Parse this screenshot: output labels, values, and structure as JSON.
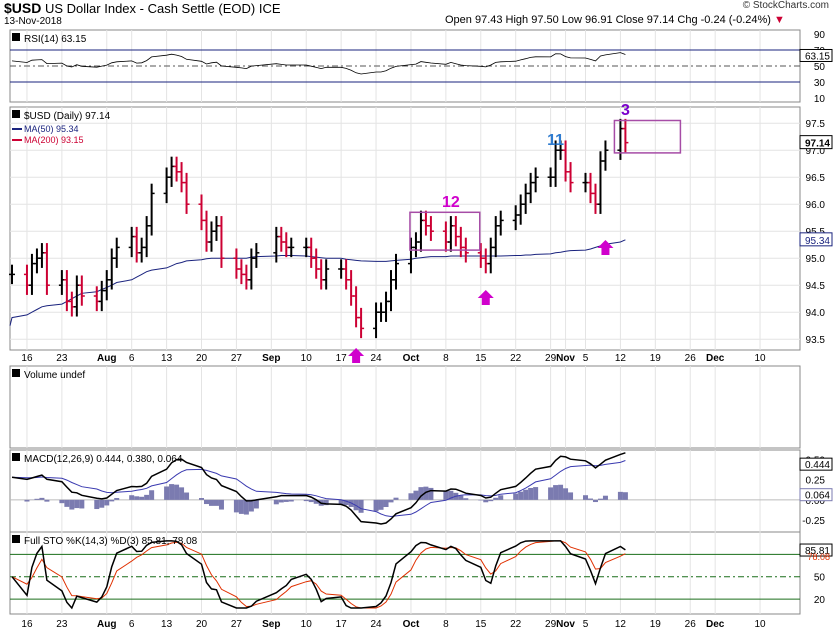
{
  "header": {
    "symbol": "$USD",
    "name": "US Dollar Index - Cash Settle (EOD)",
    "exchange": "ICE",
    "date": "13-Nov-2018",
    "ohlc_text": "Open 97.43  High 97.50  Low 96.91  Close 97.14  Chg -0.24 (-0.24%)",
    "ohlc_chg_arrow": "▼",
    "logo": "© StockCharts.com"
  },
  "colors": {
    "up": "#000000",
    "down": "#cc0033",
    "ma50": "#1a237e",
    "ma200": "#cc0033",
    "annotation_magenta": "#d000cc",
    "annotation_blue": "#2e7bcf",
    "annotation_purple": "#7a00cc",
    "box": "#a64ca6",
    "volume_bars": "#7b7bb0"
  },
  "x_axis": {
    "labels": [
      "16",
      "23",
      "Aug",
      "6",
      "13",
      "20",
      "27",
      "Sep",
      "10",
      "17",
      "24",
      "Oct",
      "8",
      "15",
      "22",
      "29",
      "Nov",
      "5",
      "12",
      "19",
      "26",
      "Dec",
      "10"
    ]
  },
  "rsi": {
    "label": "RSI(14) 63.15",
    "levels": [
      "90",
      "70",
      "63.15",
      "50",
      "30",
      "10"
    ]
  },
  "price_panel": {
    "legend_main": "$USD (Daily) 97.14",
    "legend_ma50": "MA(50) 95.34",
    "legend_ma200": "MA(200) 93.15",
    "y_labels": [
      "97.5",
      "97.0",
      "96.5",
      "96.0",
      "95.5",
      "95.0",
      "94.5",
      "94.0",
      "93.5"
    ],
    "last_price_tag": "97.14",
    "ma50_tag": "95.34",
    "annotations": [
      "12",
      "11",
      "3"
    ]
  },
  "volume": {
    "label": "Volume undef"
  },
  "macd": {
    "label": "MACD(12,26,9) 0.444, 0.380, 0.064",
    "y_labels": [
      "0.50",
      "0.444",
      "0.25",
      "0.064",
      "0.00",
      "-0.25"
    ]
  },
  "sto": {
    "label": "Full STO %K(14,3) %D(3) 85.81, 78.08",
    "y_labels": [
      "85.81",
      "78.08",
      "50",
      "20"
    ]
  },
  "chart_data": {
    "type": "candlestick",
    "title": "$USD US Dollar Index - Cash Settle (EOD) ICE",
    "x": [
      "2018-07-13",
      "2018-07-16",
      "2018-07-17",
      "2018-07-18",
      "2018-07-19",
      "2018-07-20",
      "2018-07-23",
      "2018-07-24",
      "2018-07-25",
      "2018-07-26",
      "2018-07-27",
      "2018-07-30",
      "2018-07-31",
      "2018-08-01",
      "2018-08-02",
      "2018-08-03",
      "2018-08-06",
      "2018-08-07",
      "2018-08-08",
      "2018-08-09",
      "2018-08-10",
      "2018-08-13",
      "2018-08-14",
      "2018-08-15",
      "2018-08-16",
      "2018-08-17",
      "2018-08-20",
      "2018-08-21",
      "2018-08-22",
      "2018-08-23",
      "2018-08-24",
      "2018-08-27",
      "2018-08-28",
      "2018-08-29",
      "2018-08-30",
      "2018-08-31",
      "2018-09-04",
      "2018-09-05",
      "2018-09-06",
      "2018-09-07",
      "2018-09-10",
      "2018-09-11",
      "2018-09-12",
      "2018-09-13",
      "2018-09-14",
      "2018-09-17",
      "2018-09-18",
      "2018-09-19",
      "2018-09-20",
      "2018-09-21",
      "2018-09-24",
      "2018-09-25",
      "2018-09-26",
      "2018-09-27",
      "2018-09-28",
      "2018-10-01",
      "2018-10-02",
      "2018-10-03",
      "2018-10-04",
      "2018-10-05",
      "2018-10-08",
      "2018-10-09",
      "2018-10-10",
      "2018-10-11",
      "2018-10-12",
      "2018-10-15",
      "2018-10-16",
      "2018-10-17",
      "2018-10-18",
      "2018-10-19",
      "2018-10-22",
      "2018-10-23",
      "2018-10-24",
      "2018-10-25",
      "2018-10-26",
      "2018-10-29",
      "2018-10-30",
      "2018-10-31",
      "2018-11-01",
      "2018-11-02",
      "2018-11-05",
      "2018-11-06",
      "2018-11-07",
      "2018-11-08",
      "2018-11-09",
      "2018-11-12",
      "2018-11-13"
    ],
    "close": [
      94.7,
      94.5,
      94.9,
      95.0,
      95.1,
      94.5,
      94.6,
      94.2,
      94.1,
      94.5,
      94.3,
      94.2,
      94.4,
      94.6,
      95.0,
      95.2,
      95.4,
      95.1,
      95.2,
      95.6,
      96.2,
      96.5,
      96.7,
      96.6,
      96.4,
      96.0,
      95.7,
      95.3,
      95.5,
      95.6,
      95.0,
      94.8,
      94.7,
      94.6,
      95.0,
      95.1,
      95.4,
      95.3,
      95.2,
      95.2,
      95.2,
      95.0,
      94.8,
      94.6,
      94.8,
      94.8,
      94.6,
      94.3,
      93.9,
      93.7,
      94.0,
      94.0,
      94.2,
      94.6,
      94.9,
      95.2,
      95.3,
      95.7,
      95.6,
      95.5,
      95.3,
      95.6,
      95.4,
      95.2,
      95.1,
      95.0,
      94.9,
      95.2,
      95.6,
      95.7,
      95.8,
      96.0,
      96.2,
      96.4,
      96.5,
      96.5,
      97.0,
      97.0,
      96.6,
      96.4,
      96.4,
      96.2,
      96.0,
      96.8,
      97.0,
      97.4,
      97.14
    ],
    "ma50": [
      93.9,
      93.95,
      94.0,
      94.05,
      94.1,
      94.12,
      94.15,
      94.2,
      94.25,
      94.3,
      94.35,
      94.38,
      94.42,
      94.46,
      94.5,
      94.55,
      94.6,
      94.65,
      94.7,
      94.75,
      94.78,
      94.82,
      94.86,
      94.9,
      94.92,
      94.95,
      94.97,
      94.99,
      95.0,
      95.0,
      95.0,
      95.0,
      95.0,
      95.0,
      95.02,
      95.03,
      95.04,
      95.05,
      95.05,
      95.05,
      95.04,
      95.03,
      95.02,
      95.01,
      95.0,
      95.0,
      94.98,
      94.97,
      94.96,
      94.95,
      94.94,
      94.94,
      94.94,
      94.95,
      94.96,
      94.98,
      95.0,
      95.01,
      95.02,
      95.03,
      95.03,
      95.04,
      95.04,
      95.04,
      95.04,
      95.04,
      95.04,
      95.04,
      95.04,
      95.04,
      95.05,
      95.05,
      95.06,
      95.06,
      95.07,
      95.08,
      95.1,
      95.11,
      95.13,
      95.14,
      95.15,
      95.17,
      95.2,
      95.23,
      95.26,
      95.3,
      95.34
    ],
    "ylim": [
      93.3,
      97.8
    ],
    "series": [
      {
        "name": "MA(50)",
        "last": 95.34
      },
      {
        "name": "MA(200)",
        "last": 93.15
      }
    ],
    "annotations": [
      {
        "text": "12",
        "date": "2018-10-09"
      },
      {
        "text": "11",
        "date": "2018-10-31"
      },
      {
        "text": "3",
        "date": "2018-11-12"
      }
    ],
    "macd": {
      "macd": 0.444,
      "signal": 0.38,
      "histogram": 0.064
    },
    "sto": {
      "k": 85.81,
      "d": 78.08
    },
    "rsi": 63.15
  }
}
